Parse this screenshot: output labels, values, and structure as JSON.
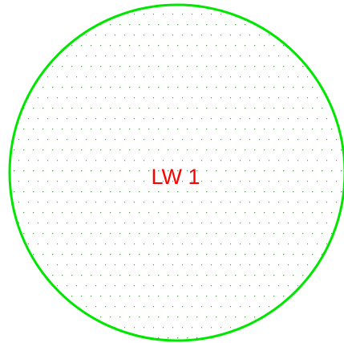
{
  "label": "LW 1"
}
